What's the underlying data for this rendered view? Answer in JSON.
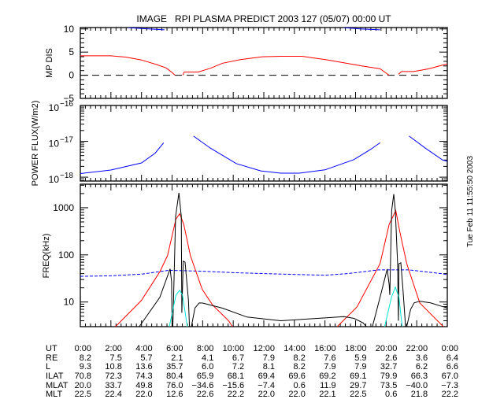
{
  "title": "IMAGE   RPI PLASMA PREDICT 2003 127 (05/07) 00:00 UT",
  "timestamp": "Tue Feb 11 11:55:50 2003",
  "colors": {
    "red": "#ff0000",
    "blue": "#0000ff",
    "black": "#000000",
    "cyan": "#00e5d0"
  },
  "chart_data": [
    {
      "type": "line",
      "ylabel": "MP DIS",
      "xlim": [
        0,
        24
      ],
      "ylim": [
        -5,
        10.3
      ],
      "yscale": "linear",
      "yticks": [
        {
          "v": 10,
          "label": "10"
        },
        {
          "v": 5,
          "label": "5"
        },
        {
          "v": 0,
          "label": "0"
        },
        {
          "v": -5,
          "label": "−5"
        }
      ],
      "reference_line": {
        "value": 0,
        "style": "dashed"
      },
      "series": [
        {
          "name": "red",
          "color": "#ff0000",
          "style": "solid",
          "segments": [
            [
              [
                0,
                4.2
              ],
              [
                2,
                4.2
              ],
              [
                3,
                3.9
              ],
              [
                4,
                3.3
              ],
              [
                5,
                2.3
              ],
              [
                5.6,
                1.6
              ],
              [
                6.0,
                0.6
              ],
              [
                6.2,
                0
              ]
            ],
            [
              [
                6.7,
                0
              ],
              [
                6.8,
                0.7
              ],
              [
                7.7,
                0.7
              ],
              [
                8.5,
                1.5
              ],
              [
                9.3,
                2.6
              ],
              [
                10.5,
                3.4
              ],
              [
                11.9,
                4.0
              ],
              [
                13.1,
                4.1
              ],
              [
                14.5,
                4.1
              ],
              [
                16.2,
                3.3
              ],
              [
                18.4,
                2.0
              ],
              [
                19.6,
                1.4
              ],
              [
                20.2,
                0
              ]
            ],
            [
              [
                20.8,
                0.2
              ],
              [
                21.0,
                0.8
              ],
              [
                21.8,
                0.8
              ],
              [
                22.8,
                1.4
              ],
              [
                23.7,
                2.2
              ],
              [
                24,
                2.4
              ]
            ]
          ]
        },
        {
          "name": "blue",
          "color": "#0000ff",
          "style": "solid",
          "segments": [
            [
              [
                3.1,
                10.3
              ],
              [
                4.0,
                10.1
              ],
              [
                5.5,
                9.8
              ]
            ],
            [
              [
                17.2,
                10.3
              ],
              [
                18.3,
                10.0
              ],
              [
                19.6,
                9.8
              ]
            ]
          ]
        }
      ]
    },
    {
      "type": "line",
      "ylabel": "POWER FLUX(W/m2)",
      "xlim": [
        0,
        24
      ],
      "ylim": [
        7.8e-19,
        1e-16
      ],
      "yscale": "log",
      "yticks": [
        {
          "v": 1e-16,
          "base": "10",
          "exp": "−16"
        },
        {
          "v": 1e-17,
          "base": "10",
          "exp": "−17"
        },
        {
          "v": 1e-18,
          "base": "10",
          "exp": "−18"
        }
      ],
      "series": [
        {
          "name": "blue",
          "color": "#0000ff",
          "style": "solid",
          "segments": [
            [
              [
                0,
                1.26e-18
              ],
              [
                2,
                1.58e-18
              ],
              [
                4,
                2.5e-18
              ],
              [
                4.9,
                4.7e-18
              ],
              [
                5.45,
                9.1e-18
              ]
            ],
            [
              [
                7.4,
                1.4e-17
              ],
              [
                8.5,
                6.5e-18
              ],
              [
                10.2,
                2.4e-18
              ],
              [
                11.8,
                1.5e-18
              ],
              [
                13.1,
                1.29e-18
              ],
              [
                14.3,
                1.29e-18
              ],
              [
                16,
                1.6e-18
              ],
              [
                17.9,
                3.1e-18
              ],
              [
                19,
                6e-18
              ],
              [
                19.6,
                9.1e-18
              ]
            ],
            [
              [
                21.5,
                1.4e-17
              ],
              [
                22.6,
                6.3e-18
              ],
              [
                23.7,
                3e-18
              ],
              [
                24,
                2.8e-18
              ]
            ]
          ]
        }
      ]
    },
    {
      "type": "line",
      "ylabel": "FREQ(kHz)",
      "xlim": [
        0,
        24
      ],
      "ylim": [
        3,
        3162
      ],
      "yscale": "log",
      "xticks": [
        "0:00",
        "2:00",
        "4:00",
        "6:00",
        "8:00",
        "10:00",
        "12:00",
        "14:00",
        "16:00",
        "18:00",
        "20:00",
        "22:00",
        "0:00"
      ],
      "yticks": [
        {
          "v": 1000,
          "label": "1000"
        },
        {
          "v": 100,
          "label": "100"
        },
        {
          "v": 10,
          "label": "10"
        }
      ],
      "series": [
        {
          "name": "blue",
          "color": "#0000ff",
          "style": "dashed",
          "segments": [
            [
              [
                0,
                35
              ],
              [
                2,
                36
              ],
              [
                4,
                39
              ],
              [
                5.8,
                47
              ],
              [
                8,
                45
              ],
              [
                10,
                42
              ],
              [
                12,
                40
              ],
              [
                16,
                37
              ],
              [
                17.5,
                40
              ],
              [
                19.5,
                48
              ],
              [
                21.5,
                48
              ],
              [
                23.6,
                40
              ],
              [
                24,
                38
              ]
            ]
          ]
        },
        {
          "name": "red",
          "color": "#ff0000",
          "style": "solid",
          "segments": [
            [
              [
                2.3,
                3
              ],
              [
                4.0,
                10.9
              ],
              [
                5.2,
                44
              ],
              [
                5.7,
                96
              ],
              [
                6.25,
                575
              ],
              [
                6.5,
                745
              ],
              [
                6.76,
                447
              ],
              [
                7.2,
                96
              ],
              [
                7.97,
                18.5
              ],
              [
                8.65,
                8.6
              ],
              [
                9.7,
                4
              ],
              [
                9.95,
                3
              ]
            ],
            [
              [
                16.8,
                3
              ],
              [
                18.1,
                7.9
              ],
              [
                19.6,
                65
              ],
              [
                20.2,
                447
              ],
              [
                20.63,
                870
              ],
              [
                20.9,
                305
              ],
              [
                21.35,
                65
              ],
              [
                22.2,
                9.6
              ],
              [
                23.74,
                3
              ]
            ]
          ]
        },
        {
          "name": "black",
          "color": "#000000",
          "style": "solid",
          "segments": [
            [
              [
                3.85,
                3
              ],
              [
                5.2,
                12.6
              ],
              [
                5.87,
                50.5
              ],
              [
                5.97,
                27
              ],
              [
                6.0,
                3
              ],
              [
                6.05,
                3
              ],
              [
                6.23,
                655
              ],
              [
                6.45,
                2080
              ],
              [
                6.6,
                655
              ],
              [
                6.64,
                5.9
              ],
              [
                6.73,
                73.6
              ],
              [
                6.85,
                70
              ],
              [
                7.07,
                10.9
              ],
              [
                7.14,
                3
              ]
            ],
            [
              [
                7.26,
                3
              ],
              [
                7.5,
                7.5
              ],
              [
                7.78,
                9.6
              ],
              [
                8.0,
                9.5
              ],
              [
                9.3,
                7.4
              ],
              [
                10.9,
                4.8
              ],
              [
                13.1,
                4.0
              ],
              [
                16,
                4.6
              ],
              [
                17.25,
                4.9
              ],
              [
                17.9,
                4.5
              ],
              [
                18.5,
                3.6
              ],
              [
                18.7,
                3
              ]
            ],
            [
              [
                19.1,
                3
              ],
              [
                19.6,
                12.6
              ],
              [
                20.07,
                50
              ],
              [
                20.2,
                23
              ],
              [
                20.24,
                14
              ],
              [
                20.36,
                858
              ],
              [
                20.5,
                1950
              ],
              [
                20.6,
                858
              ],
              [
                20.75,
                65
              ],
              [
                20.8,
                4
              ],
              [
                20.84,
                65
              ],
              [
                20.96,
                68
              ],
              [
                21.1,
                18.5
              ],
              [
                21.27,
                3
              ]
            ],
            [
              [
                21.35,
                3
              ],
              [
                21.6,
                7
              ],
              [
                21.83,
                9.6
              ],
              [
                22.2,
                10.4
              ],
              [
                22.9,
                9.6
              ],
              [
                23.74,
                7.9
              ],
              [
                24,
                7.5
              ]
            ]
          ]
        },
        {
          "name": "cyan",
          "color": "#00e5d0",
          "style": "solid",
          "segments": [
            [
              [
                5.82,
                3
              ],
              [
                6.25,
                14
              ],
              [
                6.5,
                17.8
              ],
              [
                6.68,
                14
              ],
              [
                7.0,
                3
              ]
            ],
            [
              [
                19.9,
                3
              ],
              [
                20.35,
                12.6
              ],
              [
                20.6,
                20.7
              ],
              [
                20.84,
                12.6
              ],
              [
                21.05,
                3
              ]
            ]
          ]
        }
      ]
    }
  ],
  "table": {
    "rows": [
      {
        "label": "UT",
        "values": [
          "0:00",
          "2:00",
          "4:00",
          "6:00",
          "8:00",
          "10:00",
          "12:00",
          "14:00",
          "16:00",
          "18:00",
          "20:00",
          "22:00",
          "0:00"
        ]
      },
      {
        "label": "RE",
        "values": [
          "8.2",
          "7.5",
          "5.7",
          "2.1",
          "4.1",
          "6.7",
          "7.9",
          "8.2",
          "7.6",
          "5.9",
          "2.6",
          "3.6",
          "6.4"
        ]
      },
      {
        "label": "L",
        "values": [
          "9.3",
          "10.8",
          "13.6",
          "35.7",
          "6.0",
          "7.2",
          "8.1",
          "8.2",
          "7.9",
          "7.9",
          "32.7",
          "6.2",
          "6.6"
        ]
      },
      {
        "label": "ILAT",
        "values": [
          "70.8",
          "72.3",
          "74.3",
          "80.4",
          "65.9",
          "68.1",
          "69.4",
          "69.6",
          "69.2",
          "69.1",
          "79.9",
          "66.3",
          "67.0"
        ]
      },
      {
        "label": "MLAT",
        "values": [
          "20.0",
          "33.7",
          "49.8",
          "76.0",
          "−34.6",
          "−15.6",
          "−7.4",
          "0.6",
          "11.9",
          "29.7",
          "73.5",
          "−40.0",
          "−7.3"
        ]
      },
      {
        "label": "MLT",
        "values": [
          "22.5",
          "22.4",
          "22.0",
          "12.6",
          "22.6",
          "22.2",
          "22.0",
          "22.0",
          "22.1",
          "22.5",
          "0.6",
          "21.8",
          "22.2"
        ]
      }
    ]
  }
}
